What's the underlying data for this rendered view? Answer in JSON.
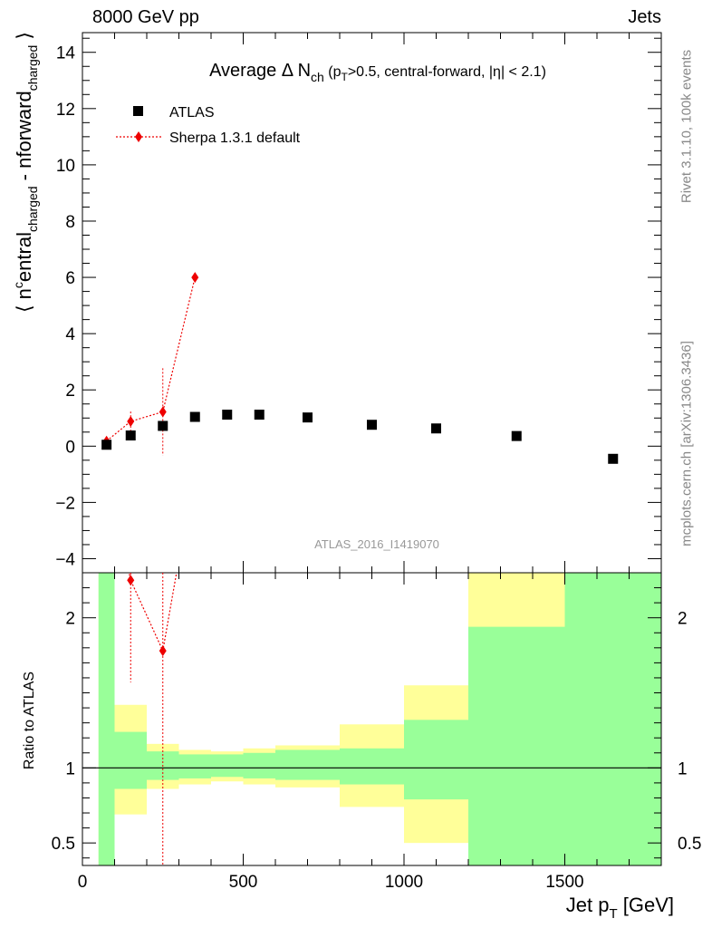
{
  "header": {
    "left": "8000 GeV pp",
    "right": "Jets"
  },
  "side_labels": {
    "rivet": "Rivet 3.1.10,  100k events",
    "mcplots": "mcplots.cern.ch [arXiv:1306.3436]"
  },
  "colors": {
    "mc": "#ee0000",
    "band_inner": "#99ff99",
    "band_outer": "#ffff99",
    "data": "#000000",
    "watermark": "#999999"
  },
  "chart_data": [
    {
      "type": "scatter",
      "title": "Average Δ N_ch (p_T>0.5, central-forward, |η| < 2.1)",
      "title_parts": {
        "main": "Average Δ N",
        "sub": "ch",
        "cond1": " (p",
        "cond_sub": "T",
        "cond2": ">0.5, central-forward, |η| < 2.1)"
      },
      "ylabel": "⟨ n^central_charged - n^forward_charged ⟩",
      "ylabel_parts": {
        "open": "⟨ n",
        "sup1": "c",
        "mid1": "entral",
        "sub1": "charged",
        "mid2": " - n",
        "sup2": "forward",
        "sub2": "charged",
        "close": " ⟩"
      },
      "watermark": "ATLAS_2016_I1419070",
      "xlim": [
        0,
        1800
      ],
      "ylim": [
        -4.5,
        14.7
      ],
      "yticks": [
        -4,
        -2,
        0,
        2,
        4,
        6,
        8,
        10,
        12,
        14
      ],
      "legend_position": "top-left",
      "series": [
        {
          "name": "ATLAS",
          "marker": "square",
          "x": [
            75,
            150,
            250,
            350,
            450,
            550,
            700,
            900,
            1100,
            1350,
            1650
          ],
          "xlow": [
            50,
            100,
            200,
            300,
            400,
            500,
            600,
            800,
            1000,
            1200,
            1500
          ],
          "xhigh": [
            100,
            200,
            300,
            400,
            500,
            600,
            800,
            1000,
            1200,
            1500,
            1800
          ],
          "y": [
            0.05,
            0.38,
            0.72,
            1.04,
            1.12,
            1.12,
            1.02,
            0.76,
            0.63,
            0.36,
            -0.45
          ]
        },
        {
          "name": "Sherpa 1.3.1 default",
          "marker": "diamond",
          "x": [
            75,
            150,
            250,
            350
          ],
          "y": [
            0.18,
            0.88,
            1.22,
            6.0
          ],
          "yerr": [
            0.1,
            0.35,
            1.55,
            0.0
          ]
        }
      ]
    },
    {
      "type": "scatter",
      "ylabel": "Ratio to ATLAS",
      "xlabel": "Jet p_T [GeV]",
      "xlabel_parts": {
        "main": "Jet p",
        "sub": "T",
        "unit": " [GeV]"
      },
      "xlim": [
        0,
        1800
      ],
      "xticks": [
        0,
        500,
        1000,
        1500
      ],
      "ylim": [
        0.35,
        2.3
      ],
      "yticks": [
        0.5,
        1,
        2
      ],
      "ytick_labels": [
        "0.5",
        "1",
        "2"
      ],
      "band_inner": [
        {
          "x0": 50,
          "x1": 100,
          "lo": 0.0,
          "hi": 3.0
        },
        {
          "x0": 100,
          "x1": 200,
          "lo": 0.86,
          "hi": 1.24
        },
        {
          "x0": 200,
          "x1": 300,
          "lo": 0.92,
          "hi": 1.11
        },
        {
          "x0": 300,
          "x1": 400,
          "lo": 0.93,
          "hi": 1.09
        },
        {
          "x0": 400,
          "x1": 500,
          "lo": 0.94,
          "hi": 1.09
        },
        {
          "x0": 500,
          "x1": 600,
          "lo": 0.93,
          "hi": 1.1
        },
        {
          "x0": 600,
          "x1": 800,
          "lo": 0.92,
          "hi": 1.12
        },
        {
          "x0": 800,
          "x1": 1000,
          "lo": 0.89,
          "hi": 1.13
        },
        {
          "x0": 1000,
          "x1": 1200,
          "lo": 0.79,
          "hi": 1.32
        },
        {
          "x0": 1200,
          "x1": 1500,
          "lo": 0.0,
          "hi": 1.94
        },
        {
          "x0": 1500,
          "x1": 1800,
          "lo": 0.0,
          "hi": 3.0
        }
      ],
      "band_outer": [
        {
          "x0": 50,
          "x1": 100,
          "lo": 0.0,
          "hi": 3.0
        },
        {
          "x0": 100,
          "x1": 200,
          "lo": 0.69,
          "hi": 1.42
        },
        {
          "x0": 200,
          "x1": 300,
          "lo": 0.86,
          "hi": 1.16
        },
        {
          "x0": 300,
          "x1": 400,
          "lo": 0.89,
          "hi": 1.12
        },
        {
          "x0": 400,
          "x1": 500,
          "lo": 0.91,
          "hi": 1.11
        },
        {
          "x0": 500,
          "x1": 600,
          "lo": 0.89,
          "hi": 1.13
        },
        {
          "x0": 600,
          "x1": 800,
          "lo": 0.87,
          "hi": 1.15
        },
        {
          "x0": 800,
          "x1": 1000,
          "lo": 0.74,
          "hi": 1.29
        },
        {
          "x0": 1000,
          "x1": 1200,
          "lo": 0.5,
          "hi": 1.55
        },
        {
          "x0": 1200,
          "x1": 1500,
          "lo": 0.0,
          "hi": 3.0
        },
        {
          "x0": 1500,
          "x1": 1800,
          "lo": 0.0,
          "hi": 3.0
        }
      ],
      "series": [
        {
          "name": "Sherpa 1.3.1 default",
          "x": [
            150,
            250
          ],
          "y": [
            2.25,
            1.78
          ],
          "ylo": [
            1.57,
            0.0
          ],
          "yhi": [
            3.0,
            3.0
          ]
        }
      ],
      "offscale_segments": [
        {
          "x0": 75,
          "x1": 150,
          "dir": "up"
        },
        {
          "x0": 250,
          "x1": 350,
          "dir": "up"
        }
      ]
    }
  ]
}
